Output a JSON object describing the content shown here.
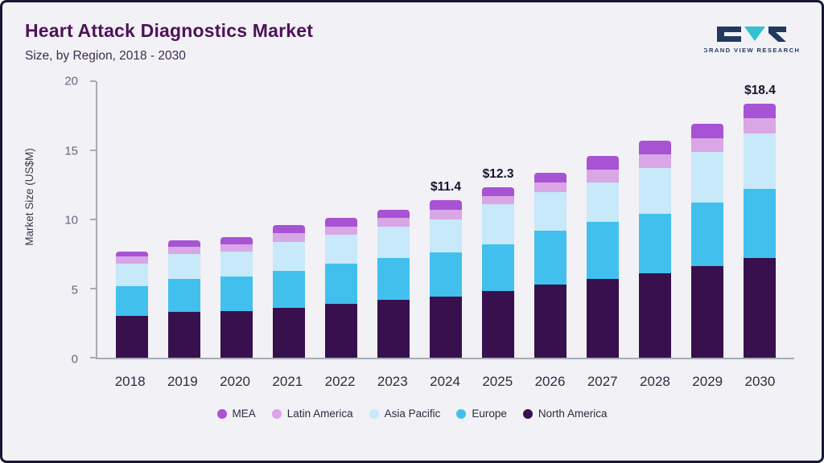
{
  "header": {
    "title": "Heart Attack Diagnostics Market",
    "subtitle": "Size, by Region, 2018 - 2030"
  },
  "logo": {
    "text": "GRAND VIEW RESEARCH",
    "mark_dark_color": "#223a5e",
    "mark_teal_color": "#35c0cf"
  },
  "chart_data": {
    "type": "bar",
    "stacked": true,
    "title": "Heart Attack Diagnostics Market Size, by Region, 2018 - 2030",
    "ylabel": "Market Size (US$M)",
    "ylim": [
      0,
      20
    ],
    "yticks": [
      0,
      5,
      10,
      15,
      20
    ],
    "grid": false,
    "legend_position": "bottom",
    "categories": [
      "2018",
      "2019",
      "2020",
      "2021",
      "2022",
      "2023",
      "2024",
      "2025",
      "2026",
      "2027",
      "2028",
      "2029",
      "2030"
    ],
    "series": [
      {
        "name": "North America",
        "color": "#38104d",
        "values": [
          3.0,
          3.3,
          3.4,
          3.6,
          3.9,
          4.2,
          4.4,
          4.8,
          5.3,
          5.7,
          6.1,
          6.6,
          7.2
        ]
      },
      {
        "name": "Europe",
        "color": "#41c0ee",
        "values": [
          2.2,
          2.4,
          2.5,
          2.7,
          2.9,
          3.0,
          3.2,
          3.4,
          3.9,
          4.1,
          4.3,
          4.6,
          5.0
        ]
      },
      {
        "name": "Asia Pacific",
        "color": "#c7e9f9",
        "values": [
          1.6,
          1.8,
          1.8,
          2.1,
          2.1,
          2.3,
          2.4,
          2.9,
          2.8,
          2.9,
          3.3,
          3.7,
          4.0
        ]
      },
      {
        "name": "Latin America",
        "color": "#d9a6e6",
        "values": [
          0.5,
          0.5,
          0.5,
          0.6,
          0.6,
          0.6,
          0.7,
          0.6,
          0.7,
          0.9,
          1.0,
          1.0,
          1.1
        ]
      },
      {
        "name": "MEA",
        "color": "#a852d4",
        "values": [
          0.4,
          0.5,
          0.5,
          0.6,
          0.6,
          0.6,
          0.7,
          0.6,
          0.7,
          1.0,
          1.0,
          1.0,
          1.1
        ]
      }
    ],
    "totals": [
      7.7,
      8.5,
      8.7,
      9.6,
      10.1,
      10.7,
      11.4,
      12.3,
      13.4,
      14.6,
      15.7,
      16.9,
      18.4
    ],
    "annotations": [
      {
        "category": "2024",
        "label": "$11.4"
      },
      {
        "category": "2025",
        "label": "$12.3"
      },
      {
        "category": "2030",
        "label": "$18.4"
      }
    ],
    "legend": [
      "MEA",
      "Latin America",
      "Asia Pacific",
      "Europe",
      "North America"
    ]
  }
}
